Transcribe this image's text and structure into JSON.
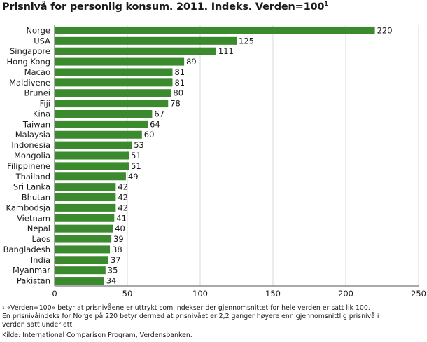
{
  "title": "Prisnivå for personlig konsum. 2011. Indeks. Verden=100",
  "title_sup": "1",
  "footnote": {
    "sup": "1",
    "line1": " «Verden=100» betyr at prisnivåene er uttrykt som indekser der gjennomsnittet for hele verden er satt lik 100.",
    "line2": "En prisnivåindeks for Norge på 220 betyr dermed at prisnivået er 2,2 ganger høyere enn gjennomsnittlig prisnivå i",
    "line3": "verden satt under ett."
  },
  "source": "Kilde: International Comparison Program, Verdensbanken.",
  "colors": {
    "bar": "#3c8a2e",
    "grid": "#d9d9d9",
    "axis": "#555555"
  },
  "chart_data": {
    "type": "bar",
    "orientation": "horizontal",
    "categories": [
      "Norge",
      "USA",
      "Singapore",
      "Hong Kong",
      "Macao",
      "Maldivene",
      "Brunei",
      "Fiji",
      "Kina",
      "Taiwan",
      "Malaysia",
      "Indonesia",
      "Mongolia",
      "Filippinene",
      "Thailand",
      "Sri Lanka",
      "Bhutan",
      "Kambodsja",
      "Vietnam",
      "Nepal",
      "Laos",
      "Bangladesh",
      "India",
      "Myanmar",
      "Pakistan"
    ],
    "values": [
      220,
      125,
      111,
      89,
      81,
      81,
      80,
      78,
      67,
      64,
      60,
      53,
      51,
      51,
      49,
      42,
      42,
      42,
      41,
      40,
      39,
      38,
      37,
      35,
      34
    ],
    "xlim": [
      0,
      250
    ],
    "xticks": [
      0,
      50,
      100,
      150,
      200,
      250
    ],
    "grid": true,
    "data_labels": true
  }
}
